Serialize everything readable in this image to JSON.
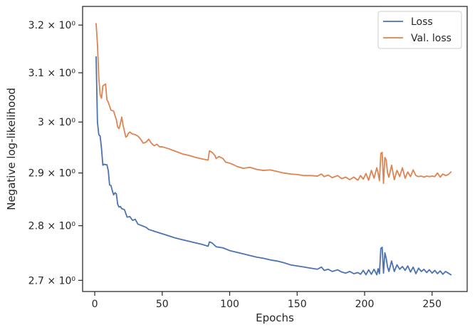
{
  "chart_data": {
    "type": "line",
    "xlabel": "Epochs",
    "ylabel": "Negative log-likelihood",
    "xlim": [
      -9,
      276
    ],
    "ylim": [
      2.68,
      3.24
    ],
    "yscale": "log",
    "x_ticks": [
      0,
      50,
      100,
      150,
      200,
      250
    ],
    "y_ticks": [
      {
        "value": 3.2,
        "label": "3.2 × 10⁰"
      },
      {
        "value": 3.1,
        "label": "3.1 × 10⁰"
      },
      {
        "value": 3.0,
        "label": "3 × 10⁰"
      },
      {
        "value": 2.9,
        "label": "2.9 × 10⁰"
      },
      {
        "value": 2.8,
        "label": "2.8 × 10⁰"
      },
      {
        "value": 2.7,
        "label": "2.7 × 10⁰"
      }
    ],
    "grid": false,
    "legend_position": "top-right",
    "series": [
      {
        "name": "Loss",
        "color": "#4c72b0",
        "points": [
          [
            1,
            3.133
          ],
          [
            2,
            3.0
          ],
          [
            3,
            2.975
          ],
          [
            4,
            2.972
          ],
          [
            5,
            2.948
          ],
          [
            6,
            2.915
          ],
          [
            7,
            2.917
          ],
          [
            8,
            2.916
          ],
          [
            9,
            2.916
          ],
          [
            10,
            2.905
          ],
          [
            11,
            2.877
          ],
          [
            12,
            2.876
          ],
          [
            13,
            2.866
          ],
          [
            14,
            2.858
          ],
          [
            15,
            2.862
          ],
          [
            16,
            2.86
          ],
          [
            17,
            2.84
          ],
          [
            18,
            2.835
          ],
          [
            19,
            2.836
          ],
          [
            20,
            2.832
          ],
          [
            22,
            2.83
          ],
          [
            24,
            2.816
          ],
          [
            26,
            2.817
          ],
          [
            28,
            2.81
          ],
          [
            30,
            2.812
          ],
          [
            32,
            2.803
          ],
          [
            35,
            2.8
          ],
          [
            38,
            2.797
          ],
          [
            40,
            2.793
          ],
          [
            45,
            2.789
          ],
          [
            50,
            2.785
          ],
          [
            55,
            2.781
          ],
          [
            60,
            2.777
          ],
          [
            65,
            2.774
          ],
          [
            70,
            2.771
          ],
          [
            75,
            2.768
          ],
          [
            80,
            2.765
          ],
          [
            84,
            2.762
          ],
          [
            85,
            2.77
          ],
          [
            87,
            2.768
          ],
          [
            90,
            2.761
          ],
          [
            95,
            2.759
          ],
          [
            100,
            2.754
          ],
          [
            105,
            2.751
          ],
          [
            110,
            2.748
          ],
          [
            115,
            2.745
          ],
          [
            120,
            2.742
          ],
          [
            125,
            2.74
          ],
          [
            130,
            2.737
          ],
          [
            135,
            2.735
          ],
          [
            140,
            2.732
          ],
          [
            145,
            2.728
          ],
          [
            150,
            2.726
          ],
          [
            155,
            2.724
          ],
          [
            160,
            2.722
          ],
          [
            165,
            2.72
          ],
          [
            168,
            2.724
          ],
          [
            170,
            2.718
          ],
          [
            173,
            2.72
          ],
          [
            176,
            2.716
          ],
          [
            180,
            2.719
          ],
          [
            183,
            2.715
          ],
          [
            186,
            2.713
          ],
          [
            189,
            2.716
          ],
          [
            192,
            2.712
          ],
          [
            195,
            2.714
          ],
          [
            197,
            2.711
          ],
          [
            199,
            2.718
          ],
          [
            201,
            2.71
          ],
          [
            203,
            2.719
          ],
          [
            205,
            2.711
          ],
          [
            207,
            2.72
          ],
          [
            209,
            2.71
          ],
          [
            210,
            2.721
          ],
          [
            211,
            2.712
          ],
          [
            212,
            2.758
          ],
          [
            213,
            2.76
          ],
          [
            214,
            2.713
          ],
          [
            215,
            2.75
          ],
          [
            216,
            2.74
          ],
          [
            217,
            2.724
          ],
          [
            218,
            2.716
          ],
          [
            220,
            2.735
          ],
          [
            222,
            2.716
          ],
          [
            224,
            2.728
          ],
          [
            226,
            2.72
          ],
          [
            228,
            2.725
          ],
          [
            230,
            2.718
          ],
          [
            232,
            2.726
          ],
          [
            234,
            2.715
          ],
          [
            236,
            2.724
          ],
          [
            238,
            2.712
          ],
          [
            240,
            2.722
          ],
          [
            242,
            2.716
          ],
          [
            244,
            2.72
          ],
          [
            246,
            2.714
          ],
          [
            248,
            2.719
          ],
          [
            250,
            2.713
          ],
          [
            252,
            2.718
          ],
          [
            254,
            2.712
          ],
          [
            256,
            2.717
          ],
          [
            258,
            2.711
          ],
          [
            260,
            2.716
          ],
          [
            262,
            2.713
          ],
          [
            264,
            2.71
          ]
        ]
      },
      {
        "name": "Val. loss",
        "color": "#dd8452",
        "points": [
          [
            1,
            3.203
          ],
          [
            2,
            3.16
          ],
          [
            3,
            3.09
          ],
          [
            4,
            3.055
          ],
          [
            5,
            3.048
          ],
          [
            6,
            3.073
          ],
          [
            7,
            3.075
          ],
          [
            8,
            3.077
          ],
          [
            9,
            3.045
          ],
          [
            10,
            3.04
          ],
          [
            11,
            3.032
          ],
          [
            12,
            3.024
          ],
          [
            14,
            3.022
          ],
          [
            15,
            3.013
          ],
          [
            16,
            3.005
          ],
          [
            17,
            2.99
          ],
          [
            18,
            2.987
          ],
          [
            19,
            2.997
          ],
          [
            20,
            3.01
          ],
          [
            21,
            2.993
          ],
          [
            22,
            2.982
          ],
          [
            23,
            2.97
          ],
          [
            24,
            2.972
          ],
          [
            25,
            2.978
          ],
          [
            26,
            2.98
          ],
          [
            28,
            2.976
          ],
          [
            30,
            2.975
          ],
          [
            32,
            2.972
          ],
          [
            34,
            2.966
          ],
          [
            36,
            2.958
          ],
          [
            38,
            2.96
          ],
          [
            40,
            2.966
          ],
          [
            42,
            2.958
          ],
          [
            44,
            2.953
          ],
          [
            46,
            2.956
          ],
          [
            48,
            2.951
          ],
          [
            50,
            2.951
          ],
          [
            55,
            2.947
          ],
          [
            60,
            2.942
          ],
          [
            65,
            2.937
          ],
          [
            70,
            2.934
          ],
          [
            75,
            2.93
          ],
          [
            80,
            2.927
          ],
          [
            84,
            2.925
          ],
          [
            85,
            2.943
          ],
          [
            87,
            2.94
          ],
          [
            89,
            2.934
          ],
          [
            90,
            2.928
          ],
          [
            92,
            2.932
          ],
          [
            95,
            2.928
          ],
          [
            97,
            2.921
          ],
          [
            100,
            2.919
          ],
          [
            103,
            2.916
          ],
          [
            105,
            2.913
          ],
          [
            110,
            2.909
          ],
          [
            115,
            2.911
          ],
          [
            120,
            2.907
          ],
          [
            125,
            2.905
          ],
          [
            130,
            2.906
          ],
          [
            135,
            2.903
          ],
          [
            140,
            2.9
          ],
          [
            145,
            2.898
          ],
          [
            150,
            2.897
          ],
          [
            155,
            2.895
          ],
          [
            160,
            2.895
          ],
          [
            165,
            2.894
          ],
          [
            168,
            2.898
          ],
          [
            170,
            2.893
          ],
          [
            173,
            2.896
          ],
          [
            176,
            2.891
          ],
          [
            180,
            2.895
          ],
          [
            183,
            2.889
          ],
          [
            186,
            2.892
          ],
          [
            189,
            2.887
          ],
          [
            192,
            2.892
          ],
          [
            195,
            2.886
          ],
          [
            197,
            2.895
          ],
          [
            199,
            2.888
          ],
          [
            201,
            2.899
          ],
          [
            203,
            2.886
          ],
          [
            205,
            2.905
          ],
          [
            207,
            2.89
          ],
          [
            209,
            2.91
          ],
          [
            210,
            2.9
          ],
          [
            211,
            2.885
          ],
          [
            212,
            2.938
          ],
          [
            213,
            2.94
          ],
          [
            214,
            2.88
          ],
          [
            215,
            2.93
          ],
          [
            216,
            2.925
          ],
          [
            217,
            2.9
          ],
          [
            218,
            2.892
          ],
          [
            220,
            2.915
          ],
          [
            222,
            2.887
          ],
          [
            224,
            2.905
          ],
          [
            226,
            2.893
          ],
          [
            228,
            2.91
          ],
          [
            230,
            2.89
          ],
          [
            232,
            2.902
          ],
          [
            234,
            2.893
          ],
          [
            236,
            2.906
          ],
          [
            238,
            2.895
          ],
          [
            240,
            2.893
          ],
          [
            242,
            2.894
          ],
          [
            244,
            2.892
          ],
          [
            246,
            2.894
          ],
          [
            248,
            2.893
          ],
          [
            250,
            2.894
          ],
          [
            252,
            2.893
          ],
          [
            254,
            2.9
          ],
          [
            256,
            2.892
          ],
          [
            258,
            2.898
          ],
          [
            260,
            2.895
          ],
          [
            262,
            2.897
          ],
          [
            264,
            2.902
          ]
        ]
      }
    ]
  }
}
